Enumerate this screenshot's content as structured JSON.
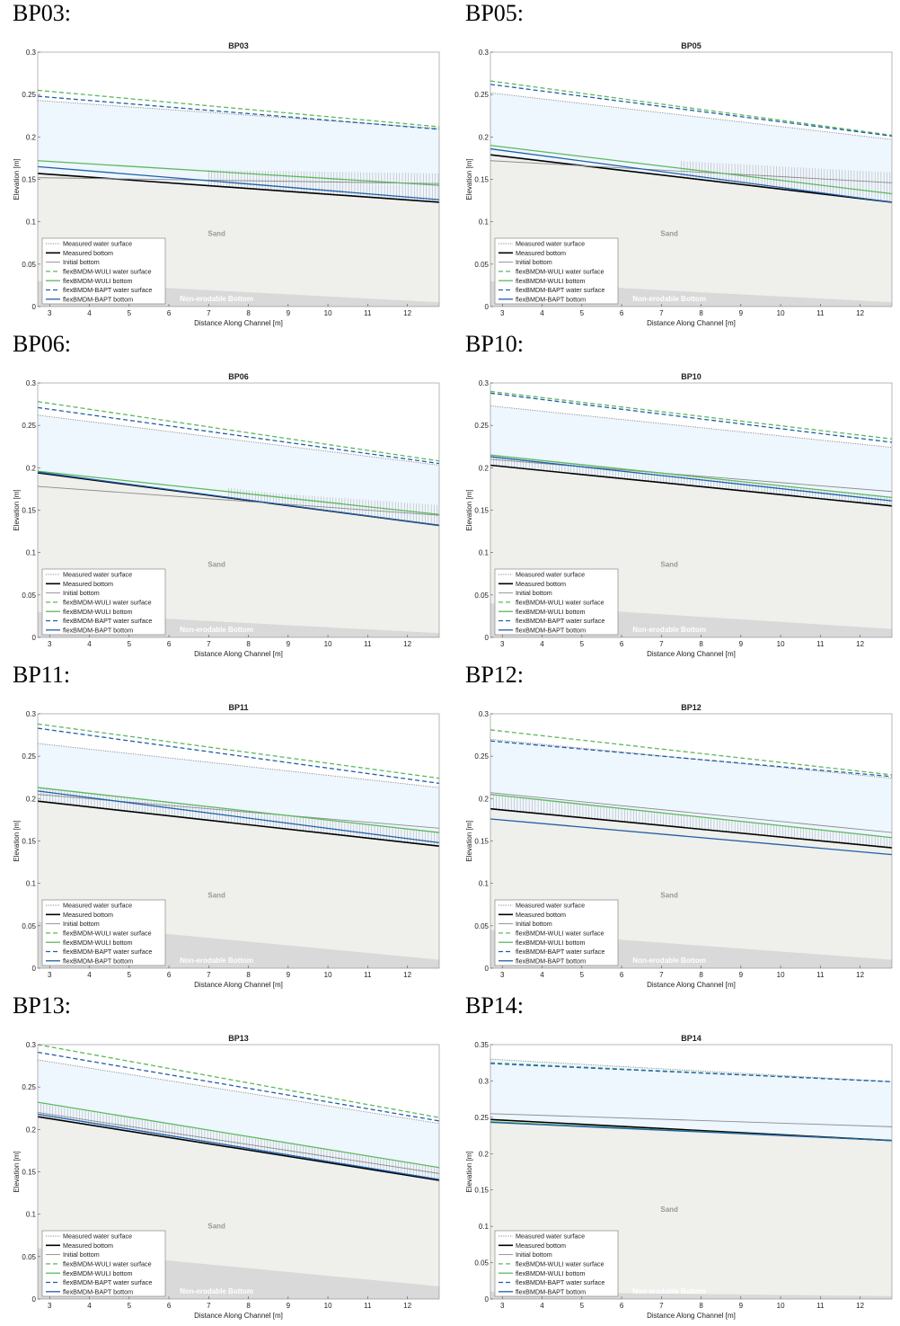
{
  "legend_labels": {
    "measured_ws": "Measured water surface",
    "measured_bottom": "Measured bottom",
    "initial_bottom": "Initial bottom",
    "wuli_ws": "flexBMDM-WULI water surface",
    "wuli_bottom": "flexBMDM-WULI bottom",
    "bapt_ws": "flexBMDM-BAPT water surface",
    "bapt_bottom": "flexBMDM-BAPT bottom"
  },
  "region_labels": {
    "sand": "Sand",
    "non_erodable": "Non-erodable Bottom"
  },
  "colors": {
    "water_fill": "#eef6fe",
    "sand_fill": "#efefeb",
    "nonerodable_fill": "#d9d9d9",
    "measured_ws": "#888888",
    "measured_bottom": "#000000",
    "initial_bottom": "#8c8c8c",
    "wuli": "#5cb85c",
    "bapt": "#1f5fa8",
    "hatch": "#b5b5b5"
  },
  "chart_data": [
    {
      "panel_label": "BP03:",
      "type": "line",
      "title": "BP03",
      "xlabel": "Distance Along Channel [m]",
      "ylabel": "Elevation [m]",
      "xlim": [
        2.7,
        12.8
      ],
      "ylim": [
        0,
        0.3
      ],
      "xticks": [
        3,
        4,
        5,
        6,
        7,
        8,
        9,
        10,
        11,
        12
      ],
      "yticks": [
        0,
        0.05,
        0.1,
        0.15,
        0.2,
        0.25,
        0.3
      ],
      "ytick_labels": [
        "0",
        "0.05",
        "0.1",
        "0.15",
        "0.2",
        "0.25",
        "0.3"
      ],
      "x": [
        2.7,
        12.8
      ],
      "series": [
        {
          "key": "measured_ws",
          "y": [
            0.243,
            0.21
          ]
        },
        {
          "key": "measured_bottom",
          "y": [
            0.157,
            0.123
          ]
        },
        {
          "key": "initial_bottom",
          "y": [
            0.152,
            0.145
          ]
        },
        {
          "key": "wuli_ws",
          "y": [
            0.255,
            0.212
          ]
        },
        {
          "key": "wuli_bottom",
          "y": [
            0.172,
            0.143
          ]
        },
        {
          "key": "bapt_ws",
          "y": [
            0.248,
            0.209
          ]
        },
        {
          "key": "bapt_bottom",
          "y": [
            0.165,
            0.126
          ]
        }
      ],
      "non_erodable": [
        0.03,
        0.005
      ],
      "hatch": [
        7.0,
        12.8
      ]
    },
    {
      "panel_label": "BP05:",
      "type": "line",
      "title": "BP05",
      "xlabel": "Distance Along Channel [m]",
      "ylabel": "Elevation [m]",
      "xlim": [
        2.7,
        12.8
      ],
      "ylim": [
        0,
        0.3
      ],
      "xticks": [
        3,
        4,
        5,
        6,
        7,
        8,
        9,
        10,
        11,
        12
      ],
      "yticks": [
        0,
        0.05,
        0.1,
        0.15,
        0.2,
        0.25,
        0.3
      ],
      "ytick_labels": [
        "0",
        "0.05",
        "0.1",
        "0.15",
        "0.2",
        "0.25",
        "0.3"
      ],
      "x": [
        2.7,
        12.8
      ],
      "series": [
        {
          "key": "measured_ws",
          "y": [
            0.252,
            0.197
          ]
        },
        {
          "key": "measured_bottom",
          "y": [
            0.179,
            0.123
          ]
        },
        {
          "key": "initial_bottom",
          "y": [
            0.172,
            0.146
          ]
        },
        {
          "key": "wuli_ws",
          "y": [
            0.266,
            0.202
          ]
        },
        {
          "key": "wuli_bottom",
          "y": [
            0.19,
            0.133
          ]
        },
        {
          "key": "bapt_ws",
          "y": [
            0.262,
            0.201
          ]
        },
        {
          "key": "bapt_bottom",
          "y": [
            0.186,
            0.123
          ]
        }
      ],
      "non_erodable": [
        0.03,
        0.005
      ],
      "hatch": [
        7.5,
        12.8
      ]
    },
    {
      "panel_label": "BP06:",
      "type": "line",
      "title": "BP06",
      "xlabel": "Distance Along Channel [m]",
      "ylabel": "Elevation [m]",
      "xlim": [
        2.7,
        12.8
      ],
      "ylim": [
        0,
        0.3
      ],
      "xticks": [
        3,
        4,
        5,
        6,
        7,
        8,
        9,
        10,
        11,
        12
      ],
      "yticks": [
        0,
        0.05,
        0.1,
        0.15,
        0.2,
        0.25,
        0.3
      ],
      "ytick_labels": [
        "0",
        "0.05",
        "0.1",
        "0.15",
        "0.2",
        "0.25",
        "0.3"
      ],
      "x": [
        2.7,
        12.8
      ],
      "series": [
        {
          "key": "measured_ws",
          "y": [
            0.262,
            0.203
          ]
        },
        {
          "key": "measured_bottom",
          "y": [
            0.194,
            0.132
          ]
        },
        {
          "key": "initial_bottom",
          "y": [
            0.178,
            0.144
          ]
        },
        {
          "key": "wuli_ws",
          "y": [
            0.278,
            0.208
          ]
        },
        {
          "key": "wuli_bottom",
          "y": [
            0.196,
            0.145
          ]
        },
        {
          "key": "bapt_ws",
          "y": [
            0.271,
            0.205
          ]
        },
        {
          "key": "bapt_bottom",
          "y": [
            0.195,
            0.132
          ]
        }
      ],
      "non_erodable": [
        0.03,
        0.005
      ],
      "hatch": [
        7.5,
        12.8
      ]
    },
    {
      "panel_label": "BP10:",
      "type": "line",
      "title": "BP10",
      "xlabel": "Distance Along Channel [m]",
      "ylabel": "Elevation [m]",
      "xlim": [
        2.7,
        12.8
      ],
      "ylim": [
        0,
        0.3
      ],
      "xticks": [
        3,
        4,
        5,
        6,
        7,
        8,
        9,
        10,
        11,
        12
      ],
      "yticks": [
        0,
        0.05,
        0.1,
        0.15,
        0.2,
        0.25,
        0.3
      ],
      "ytick_labels": [
        "0",
        "0.05",
        "0.1",
        "0.15",
        "0.2",
        "0.25",
        "0.3"
      ],
      "x": [
        2.7,
        12.8
      ],
      "series": [
        {
          "key": "measured_ws",
          "y": [
            0.273,
            0.224
          ]
        },
        {
          "key": "measured_bottom",
          "y": [
            0.203,
            0.155
          ]
        },
        {
          "key": "initial_bottom",
          "y": [
            0.21,
            0.172
          ]
        },
        {
          "key": "wuli_ws",
          "y": [
            0.29,
            0.234
          ]
        },
        {
          "key": "wuli_bottom",
          "y": [
            0.215,
            0.165
          ]
        },
        {
          "key": "bapt_ws",
          "y": [
            0.288,
            0.23
          ]
        },
        {
          "key": "bapt_bottom",
          "y": [
            0.213,
            0.161
          ]
        }
      ],
      "non_erodable": [
        0.04,
        0.01
      ],
      "hatch": [
        2.7,
        12.8
      ]
    },
    {
      "panel_label": "BP11:",
      "type": "line",
      "title": "BP11",
      "xlabel": "Distance Along Channel [m]",
      "ylabel": "Elevation [m]",
      "xlim": [
        2.7,
        12.8
      ],
      "ylim": [
        0,
        0.3
      ],
      "xticks": [
        3,
        4,
        5,
        6,
        7,
        8,
        9,
        10,
        11,
        12
      ],
      "yticks": [
        0,
        0.05,
        0.1,
        0.15,
        0.2,
        0.25,
        0.3
      ],
      "ytick_labels": [
        "0",
        "0.05",
        "0.1",
        "0.15",
        "0.2",
        "0.25",
        "0.3"
      ],
      "x": [
        2.7,
        12.8
      ],
      "series": [
        {
          "key": "measured_ws",
          "y": [
            0.265,
            0.213
          ]
        },
        {
          "key": "measured_bottom",
          "y": [
            0.197,
            0.144
          ]
        },
        {
          "key": "initial_bottom",
          "y": [
            0.205,
            0.165
          ]
        },
        {
          "key": "wuli_ws",
          "y": [
            0.288,
            0.224
          ]
        },
        {
          "key": "wuli_bottom",
          "y": [
            0.213,
            0.16
          ]
        },
        {
          "key": "bapt_ws",
          "y": [
            0.283,
            0.218
          ]
        },
        {
          "key": "bapt_bottom",
          "y": [
            0.209,
            0.148
          ]
        }
      ],
      "non_erodable": [
        0.055,
        0.01
      ],
      "hatch": [
        2.7,
        12.8
      ]
    },
    {
      "panel_label": "BP12:",
      "type": "line",
      "title": "BP12",
      "xlabel": "Distance Along Channel [m]",
      "ylabel": "Elevation [m]",
      "xlim": [
        2.7,
        12.8
      ],
      "ylim": [
        0,
        0.3
      ],
      "xticks": [
        3,
        4,
        5,
        6,
        7,
        8,
        9,
        10,
        11,
        12
      ],
      "yticks": [
        0,
        0.05,
        0.1,
        0.15,
        0.2,
        0.25,
        0.3
      ],
      "ytick_labels": [
        "0",
        "0.05",
        "0.1",
        "0.15",
        "0.2",
        "0.25",
        "0.3"
      ],
      "x": [
        2.7,
        12.8
      ],
      "series": [
        {
          "key": "measured_ws",
          "y": [
            0.27,
            0.224
          ]
        },
        {
          "key": "measured_bottom",
          "y": [
            0.188,
            0.142
          ]
        },
        {
          "key": "initial_bottom",
          "y": [
            0.207,
            0.16
          ]
        },
        {
          "key": "wuli_ws",
          "y": [
            0.281,
            0.228
          ]
        },
        {
          "key": "wuli_bottom",
          "y": [
            0.205,
            0.154
          ]
        },
        {
          "key": "bapt_ws",
          "y": [
            0.268,
            0.226
          ]
        },
        {
          "key": "bapt_bottom",
          "y": [
            0.176,
            0.134
          ]
        }
      ],
      "non_erodable": [
        0.045,
        0.01
      ],
      "hatch": [
        2.7,
        12.8
      ]
    },
    {
      "panel_label": "BP13:",
      "type": "line",
      "title": "BP13",
      "xlabel": "Distance Along Channel [m]",
      "ylabel": "Elevation [m]",
      "xlim": [
        2.7,
        12.8
      ],
      "ylim": [
        0,
        0.3
      ],
      "xticks": [
        3,
        4,
        5,
        6,
        7,
        8,
        9,
        10,
        11,
        12
      ],
      "yticks": [
        0,
        0.05,
        0.1,
        0.15,
        0.2,
        0.25,
        0.3
      ],
      "ytick_labels": [
        "0",
        "0.05",
        "0.1",
        "0.15",
        "0.2",
        "0.25",
        "0.3"
      ],
      "x": [
        2.7,
        12.8
      ],
      "series": [
        {
          "key": "measured_ws",
          "y": [
            0.282,
            0.207
          ]
        },
        {
          "key": "measured_bottom",
          "y": [
            0.215,
            0.14
          ]
        },
        {
          "key": "initial_bottom",
          "y": [
            0.22,
            0.148
          ]
        },
        {
          "key": "wuli_ws",
          "y": [
            0.3,
            0.214
          ]
        },
        {
          "key": "wuli_bottom",
          "y": [
            0.232,
            0.155
          ]
        },
        {
          "key": "bapt_ws",
          "y": [
            0.291,
            0.21
          ]
        },
        {
          "key": "bapt_bottom",
          "y": [
            0.218,
            0.141
          ]
        }
      ],
      "non_erodable": [
        0.06,
        0.015
      ],
      "hatch": [
        2.7,
        12.8
      ]
    },
    {
      "panel_label": "BP14:",
      "type": "line",
      "title": "BP14",
      "xlabel": "Distance Along Channel [m]",
      "ylabel": "Elevation [m]",
      "xlim": [
        2.7,
        12.8
      ],
      "ylim": [
        0,
        0.35
      ],
      "xticks": [
        3,
        4,
        5,
        6,
        7,
        8,
        9,
        10,
        11,
        12
      ],
      "yticks": [
        0,
        0.05,
        0.1,
        0.15,
        0.2,
        0.25,
        0.3,
        0.35
      ],
      "ytick_labels": [
        "0",
        "0.05",
        "0.1",
        "0.15",
        "0.2",
        "0.25",
        "0.3",
        "0.35"
      ],
      "x": [
        2.7,
        12.8
      ],
      "series": [
        {
          "key": "measured_ws",
          "y": [
            0.33,
            0.299
          ]
        },
        {
          "key": "measured_bottom",
          "y": [
            0.247,
            0.218
          ]
        },
        {
          "key": "initial_bottom",
          "y": [
            0.255,
            0.237
          ]
        },
        {
          "key": "wuli_ws",
          "y": [
            0.325,
            0.299
          ]
        },
        {
          "key": "wuli_bottom",
          "y": [
            0.244,
            0.218
          ]
        },
        {
          "key": "bapt_ws",
          "y": [
            0.324,
            0.299
          ]
        },
        {
          "key": "bapt_bottom",
          "y": [
            0.243,
            0.218
          ]
        }
      ],
      "non_erodable": [
        0.01,
        0.004
      ],
      "hatch": null
    }
  ]
}
